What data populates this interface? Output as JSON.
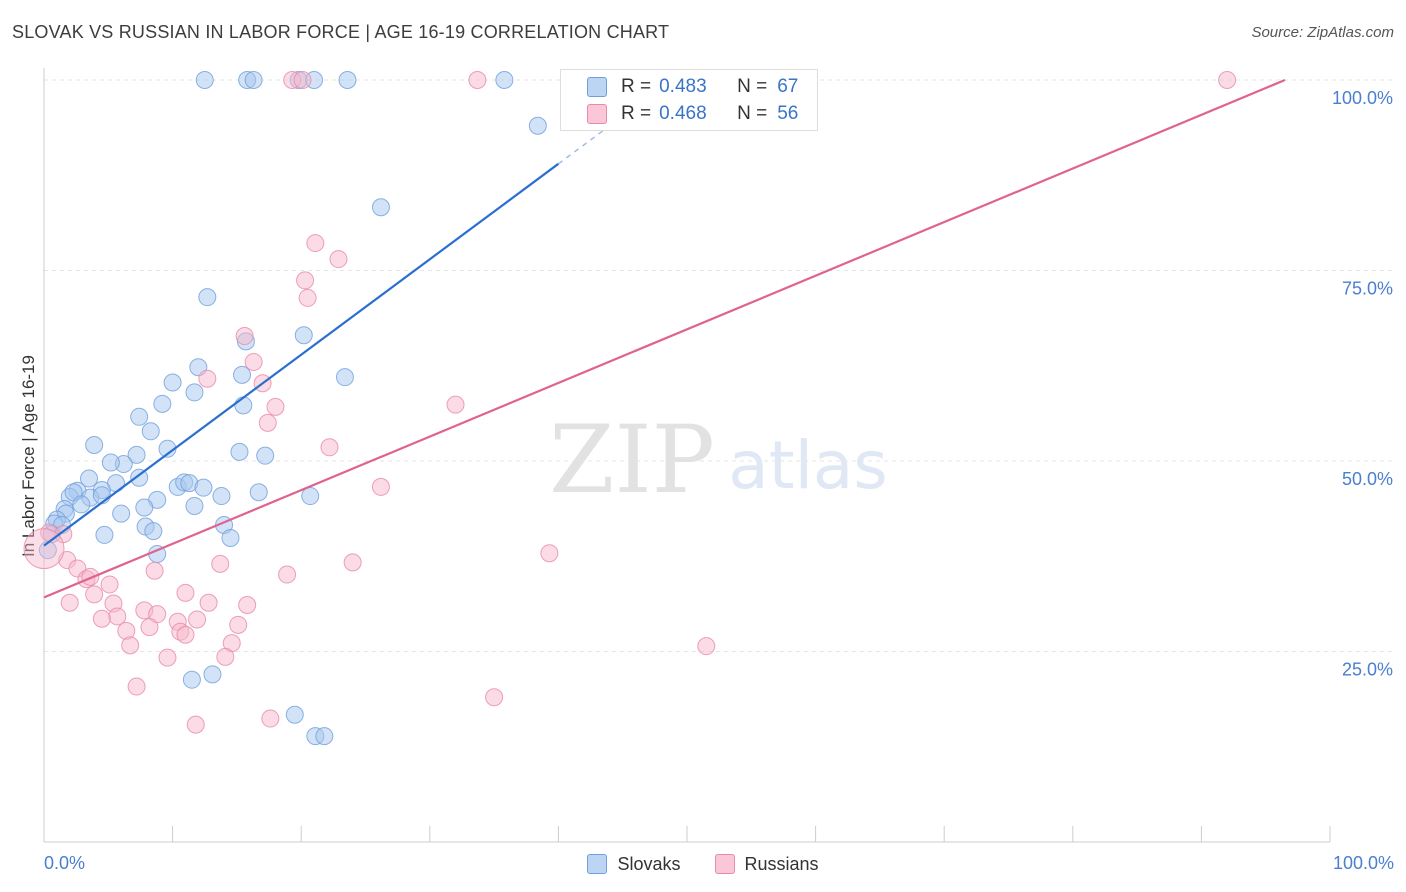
{
  "header": {
    "title": "SLOVAK VS RUSSIAN IN LABOR FORCE | AGE 16-19 CORRELATION CHART",
    "source": "Source: ZipAtlas.com"
  },
  "watermark": {
    "zip": "ZIP",
    "atlas": "atlas"
  },
  "legend": {
    "r_label": "R =",
    "n_label": "N =",
    "series": [
      {
        "name": "Slovaks",
        "r": "0.483",
        "n": "67"
      },
      {
        "name": "Russians",
        "r": "0.468",
        "n": "56"
      }
    ]
  },
  "colors": {
    "slovak_fill": "#a8c8f0",
    "slovak_stroke": "#6f9fdc",
    "slovak_line": "#2a6fd0",
    "russian_fill": "#f7b8cc",
    "russian_stroke": "#e88aa8",
    "russian_line": "#e0638f",
    "tick_label": "#4a7fcf"
  },
  "chart_data": {
    "type": "scatter",
    "title": "SLOVAK VS RUSSIAN IN LABOR FORCE | AGE 16-19 CORRELATION CHART",
    "xlabel": "",
    "ylabel": "In Labor Force | Age 16-19",
    "xlim": [
      0,
      100
    ],
    "ylim": [
      0,
      100
    ],
    "x_tick_labels": [
      "0.0%",
      "100.0%"
    ],
    "y_ticks": [
      {
        "value": 25,
        "label": "25.0%"
      },
      {
        "value": 50,
        "label": "50.0%"
      },
      {
        "value": 75,
        "label": "75.0%"
      },
      {
        "value": 100,
        "label": "100.0%"
      }
    ],
    "series": [
      {
        "name": "Slovaks",
        "trend": {
          "x0": 0,
          "y0": 38.9,
          "x1": 40,
          "y1": 89,
          "dashed_to_x": 47.5
        },
        "points": [
          [
            12.5,
            100
          ],
          [
            15.8,
            100
          ],
          [
            16.3,
            100
          ],
          [
            19.8,
            100
          ],
          [
            21.0,
            100
          ],
          [
            23.6,
            100
          ],
          [
            35.8,
            100
          ],
          [
            38.4,
            94
          ],
          [
            26.2,
            83.3
          ],
          [
            12.7,
            71.5
          ],
          [
            15.7,
            65.7
          ],
          [
            20.2,
            66.5
          ],
          [
            23.4,
            61
          ],
          [
            12.0,
            62.3
          ],
          [
            10.0,
            60.3
          ],
          [
            15.4,
            61.3
          ],
          [
            11.7,
            59
          ],
          [
            9.2,
            57.5
          ],
          [
            15.5,
            57.3
          ],
          [
            7.4,
            55.8
          ],
          [
            8.3,
            53.9
          ],
          [
            3.9,
            52.1
          ],
          [
            9.6,
            51.6
          ],
          [
            15.2,
            51.2
          ],
          [
            17.2,
            50.7
          ],
          [
            7.2,
            50.8
          ],
          [
            6.2,
            49.6
          ],
          [
            5.2,
            49.8
          ],
          [
            7.4,
            47.8
          ],
          [
            3.5,
            47.7
          ],
          [
            5.6,
            47.1
          ],
          [
            10.4,
            46.6
          ],
          [
            10.9,
            47.2
          ],
          [
            11.3,
            47.1
          ],
          [
            12.4,
            46.5
          ],
          [
            2.6,
            46.1
          ],
          [
            4.5,
            46.2
          ],
          [
            2.0,
            45.3
          ],
          [
            2.3,
            45.9
          ],
          [
            3.6,
            45.2
          ],
          [
            4.5,
            45.5
          ],
          [
            8.8,
            44.9
          ],
          [
            13.8,
            45.4
          ],
          [
            16.7,
            45.9
          ],
          [
            20.7,
            45.4
          ],
          [
            2.9,
            44.3
          ],
          [
            1.6,
            43.7
          ],
          [
            1.7,
            43.1
          ],
          [
            7.8,
            43.9
          ],
          [
            11.7,
            44.1
          ],
          [
            6.0,
            43.1
          ],
          [
            1.0,
            42.3
          ],
          [
            0.8,
            41.8
          ],
          [
            1.4,
            41.6
          ],
          [
            14.0,
            41.6
          ],
          [
            7.9,
            41.4
          ],
          [
            8.5,
            40.8
          ],
          [
            4.7,
            40.3
          ],
          [
            14.5,
            39.9
          ],
          [
            0.6,
            40.4
          ],
          [
            0.3,
            38.3
          ],
          [
            8.8,
            37.8
          ],
          [
            11.5,
            21.3
          ],
          [
            13.1,
            22
          ],
          [
            19.5,
            16.7
          ],
          [
            21.1,
            13.9
          ],
          [
            21.8,
            13.9
          ]
        ]
      },
      {
        "name": "Russians",
        "trend": {
          "x0": 0,
          "y0": 32.1,
          "x1": 96.5,
          "y1": 100
        },
        "points": [
          [
            19.3,
            100
          ],
          [
            20.1,
            100
          ],
          [
            33.7,
            100
          ],
          [
            92.0,
            100
          ],
          [
            21.1,
            78.6
          ],
          [
            22.9,
            76.5
          ],
          [
            20.3,
            73.7
          ],
          [
            20.5,
            71.4
          ],
          [
            15.6,
            66.4
          ],
          [
            16.3,
            63
          ],
          [
            12.7,
            60.8
          ],
          [
            17.0,
            60.2
          ],
          [
            18.0,
            57.1
          ],
          [
            32.0,
            57.4
          ],
          [
            17.4,
            55
          ],
          [
            22.2,
            51.8
          ],
          [
            26.2,
            46.6
          ],
          [
            0.4,
            40.6
          ],
          [
            1.5,
            40.4
          ],
          [
            39.3,
            37.9
          ],
          [
            1.8,
            37
          ],
          [
            13.7,
            36.5
          ],
          [
            24.0,
            36.7
          ],
          [
            2.6,
            35.9
          ],
          [
            8.6,
            35.6
          ],
          [
            18.9,
            35.1
          ],
          [
            3.3,
            34.5
          ],
          [
            3.6,
            34.8
          ],
          [
            5.1,
            33.8
          ],
          [
            11.0,
            32.7
          ],
          [
            3.9,
            32.5
          ],
          [
            2.0,
            31.4
          ],
          [
            5.4,
            31.3
          ],
          [
            12.8,
            31.4
          ],
          [
            15.8,
            31.1
          ],
          [
            7.8,
            30.4
          ],
          [
            5.7,
            29.6
          ],
          [
            8.8,
            29.9
          ],
          [
            4.5,
            29.3
          ],
          [
            11.9,
            29.2
          ],
          [
            10.4,
            28.9
          ],
          [
            15.1,
            28.5
          ],
          [
            8.2,
            28.2
          ],
          [
            6.4,
            27.7
          ],
          [
            10.6,
            27.6
          ],
          [
            11.0,
            27.2
          ],
          [
            14.6,
            26.1
          ],
          [
            6.7,
            25.8
          ],
          [
            51.5,
            25.7
          ],
          [
            9.6,
            24.2
          ],
          [
            14.1,
            24.3
          ],
          [
            7.2,
            20.4
          ],
          [
            35.0,
            19
          ],
          [
            17.6,
            16.2
          ],
          [
            11.8,
            15.4
          ],
          [
            0.0,
            38.5
          ]
        ]
      }
    ]
  }
}
